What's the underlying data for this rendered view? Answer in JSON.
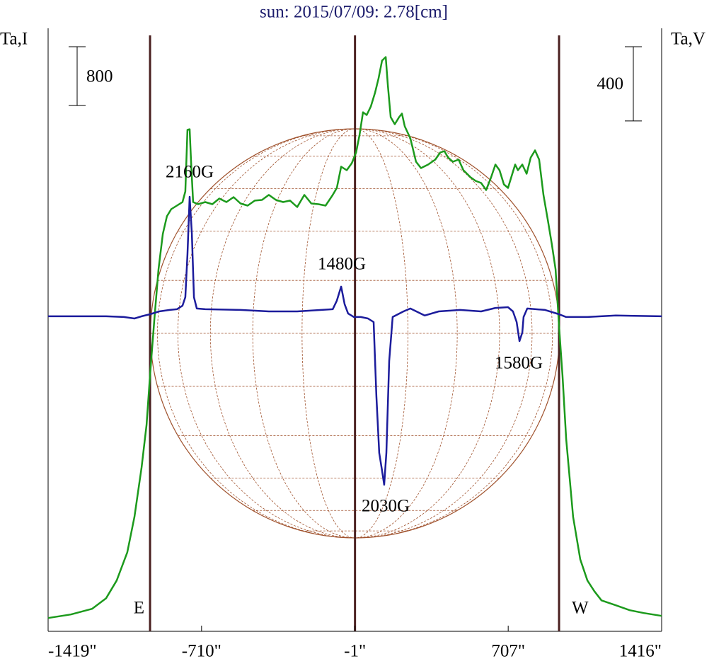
{
  "chart_data": {
    "type": "line",
    "title": "sun: 2015/07/09: 2.78[cm]",
    "ylabel": "Ta,I",
    "y2label": "Ta,V",
    "xlim": [
      -1419,
      1416
    ],
    "xticks": [
      {
        "value": -1419,
        "label": "-1419\""
      },
      {
        "value": -710,
        "label": "-710\""
      },
      {
        "value": -1,
        "label": "-1\""
      },
      {
        "value": 707,
        "label": "707\""
      },
      {
        "value": 1416,
        "label": "1416\""
      }
    ],
    "ylim": [
      -200,
      8000
    ],
    "y2lim": [
      -1700,
      1550
    ],
    "y_scale_bar": 800,
    "y2_scale_bar": 400,
    "vlines": [
      -948,
      -1,
      942
    ],
    "limb_labels": [
      "E",
      "W"
    ],
    "annotations": [
      "2160G",
      "1480G",
      "1580G",
      "2030G"
    ],
    "series": [
      {
        "color": "#1c9a1c",
        "x": [
          -1419,
          -1314,
          -1216,
          -1151,
          -1102,
          -1053,
          -1020,
          -987,
          -964,
          -948,
          -928,
          -909,
          -889,
          -870,
          -850,
          -824,
          -798,
          -785,
          -775,
          -765,
          -758,
          -749,
          -726,
          -693,
          -660,
          -628,
          -595,
          -562,
          -530,
          -497,
          -464,
          -431,
          -399,
          -366,
          -333,
          -301,
          -268,
          -235,
          -203,
          -170,
          -137,
          -104,
          -85,
          -65,
          -39,
          -16,
          4,
          20,
          36,
          53,
          72,
          92,
          108,
          124,
          141,
          151,
          164,
          183,
          203,
          216,
          229,
          255,
          281,
          304,
          337,
          370,
          393,
          412,
          429,
          451,
          478,
          500,
          533,
          556,
          582,
          605,
          628,
          648,
          667,
          687,
          706,
          726,
          739,
          752,
          772,
          792,
          811,
          831,
          850,
          870,
          890,
          909,
          926,
          942,
          958,
          975,
          1007,
          1040,
          1073,
          1105,
          1138,
          1204,
          1269,
          1334,
          1416
        ],
        "values": [
          -19,
          29,
          106,
          250,
          491,
          875,
          1356,
          2030,
          2607,
          3280,
          4050,
          4723,
          5204,
          5445,
          5541,
          5589,
          5637,
          5782,
          6619,
          6628,
          6166,
          5637,
          5608,
          5637,
          5608,
          5685,
          5637,
          5705,
          5618,
          5589,
          5657,
          5666,
          5734,
          5666,
          5637,
          5657,
          5570,
          5734,
          5618,
          5608,
          5589,
          5734,
          5830,
          6118,
          6070,
          6166,
          6311,
          6551,
          6859,
          6821,
          6936,
          7128,
          7321,
          7561,
          7609,
          7225,
          6792,
          6696,
          6792,
          6840,
          6667,
          6503,
          6186,
          6099,
          6147,
          6215,
          6311,
          6330,
          6243,
          6186,
          6215,
          6070,
          5974,
          5926,
          5897,
          5801,
          5974,
          6147,
          6070,
          5878,
          5830,
          6022,
          6147,
          6070,
          6147,
          6022,
          6243,
          6340,
          6215,
          5734,
          5397,
          5060,
          4723,
          3954,
          3280,
          2415,
          1356,
          779,
          491,
          346,
          221,
          154,
          87,
          48,
          10
        ]
      },
      {
        "color": "#1c1c9c",
        "axis": "y2",
        "x": [
          -1419,
          -1314,
          -1151,
          -1069,
          -1020,
          -987,
          -948,
          -906,
          -857,
          -824,
          -798,
          -785,
          -775,
          -765,
          -755,
          -745,
          -732,
          -693,
          -530,
          -399,
          -268,
          -104,
          -85,
          -65,
          -49,
          -33,
          -6,
          26,
          59,
          85,
          98,
          111,
          124,
          134,
          144,
          157,
          173,
          223,
          255,
          321,
          386,
          484,
          582,
          648,
          706,
          729,
          746,
          759,
          772,
          778,
          795,
          877,
          942,
          975,
          1073,
          1204,
          1416
        ],
        "values": [
          -2,
          -2,
          -2,
          -6,
          -14,
          -2,
          9,
          24,
          32,
          36,
          55,
          101,
          330,
          642,
          445,
          101,
          40,
          36,
          32,
          24,
          24,
          36,
          82,
          158,
          63,
          13,
          -6,
          -6,
          -14,
          -33,
          -433,
          -738,
          -834,
          -910,
          -738,
          -243,
          -6,
          24,
          40,
          2,
          24,
          32,
          24,
          43,
          47,
          24,
          -33,
          -136,
          -90,
          -6,
          40,
          32,
          9,
          -6,
          -6,
          2,
          -2
        ]
      }
    ]
  }
}
